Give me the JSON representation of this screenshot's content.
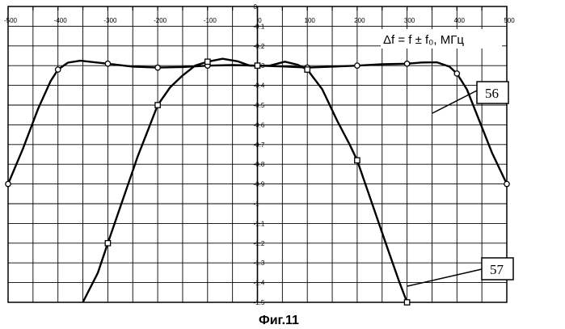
{
  "chart_data": {
    "type": "line",
    "x_ticks": [
      "-500",
      "-400",
      "-300",
      "-200",
      "-100",
      "0",
      "100",
      "200",
      "300",
      "400",
      "500"
    ],
    "y_ticks": [
      "0",
      "-0.1",
      "-0.2",
      "-0.3",
      "-0.4",
      "-0.5",
      "-0.6",
      "-0.7",
      "-0.8",
      "-0.9",
      "-1",
      "-1.1",
      "-1.2",
      "-1.3",
      "-1.4",
      "-1.5"
    ],
    "xlim": [
      -500,
      500
    ],
    "ylim": [
      -1.5,
      0
    ],
    "grid": true,
    "xlabel": "Δf = f ± f₀, МГц",
    "series": [
      {
        "name": "56",
        "marker": "circle",
        "points": [
          [
            -500,
            -0.9
          ],
          [
            -400,
            -0.32
          ],
          [
            -300,
            -0.29
          ],
          [
            -200,
            -0.31
          ],
          [
            -100,
            -0.3
          ],
          [
            0,
            -0.3
          ],
          [
            100,
            -0.31
          ],
          [
            200,
            -0.3
          ],
          [
            300,
            -0.29
          ],
          [
            400,
            -0.34
          ],
          [
            500,
            -0.9
          ]
        ],
        "curve": [
          [
            -500,
            -0.9
          ],
          [
            -470,
            -0.72
          ],
          [
            -440,
            -0.52
          ],
          [
            -415,
            -0.38
          ],
          [
            -400,
            -0.32
          ],
          [
            -380,
            -0.285
          ],
          [
            -355,
            -0.275
          ],
          [
            -330,
            -0.282
          ],
          [
            -300,
            -0.29
          ],
          [
            -250,
            -0.305
          ],
          [
            -200,
            -0.31
          ],
          [
            -150,
            -0.307
          ],
          [
            -100,
            -0.3
          ],
          [
            -50,
            -0.297
          ],
          [
            0,
            -0.3
          ],
          [
            50,
            -0.304
          ],
          [
            100,
            -0.31
          ],
          [
            150,
            -0.305
          ],
          [
            200,
            -0.3
          ],
          [
            250,
            -0.293
          ],
          [
            300,
            -0.29
          ],
          [
            330,
            -0.284
          ],
          [
            360,
            -0.283
          ],
          [
            385,
            -0.305
          ],
          [
            400,
            -0.34
          ],
          [
            420,
            -0.42
          ],
          [
            445,
            -0.58
          ],
          [
            470,
            -0.74
          ],
          [
            500,
            -0.9
          ]
        ]
      },
      {
        "name": "57",
        "marker": "square",
        "points": [
          [
            -300,
            -1.2
          ],
          [
            -200,
            -0.5
          ],
          [
            -100,
            -0.28
          ],
          [
            0,
            -0.3
          ],
          [
            100,
            -0.32
          ],
          [
            200,
            -0.78
          ],
          [
            300,
            -1.5
          ]
        ],
        "curve": [
          [
            -350,
            -1.5
          ],
          [
            -320,
            -1.35
          ],
          [
            -300,
            -1.2
          ],
          [
            -270,
            -0.98
          ],
          [
            -240,
            -0.76
          ],
          [
            -220,
            -0.63
          ],
          [
            -200,
            -0.5
          ],
          [
            -175,
            -0.41
          ],
          [
            -150,
            -0.35
          ],
          [
            -125,
            -0.3
          ],
          [
            -100,
            -0.28
          ],
          [
            -70,
            -0.265
          ],
          [
            -40,
            -0.278
          ],
          [
            -15,
            -0.3
          ],
          [
            0,
            -0.3
          ],
          [
            25,
            -0.3
          ],
          [
            55,
            -0.28
          ],
          [
            80,
            -0.295
          ],
          [
            100,
            -0.32
          ],
          [
            130,
            -0.42
          ],
          [
            160,
            -0.58
          ],
          [
            185,
            -0.7
          ],
          [
            200,
            -0.78
          ],
          [
            230,
            -1.0
          ],
          [
            260,
            -1.22
          ],
          [
            285,
            -1.4
          ],
          [
            300,
            -1.5
          ]
        ]
      }
    ]
  },
  "callouts": {
    "curve_56": "56",
    "curve_57": "57"
  },
  "caption": "Фиг.11"
}
